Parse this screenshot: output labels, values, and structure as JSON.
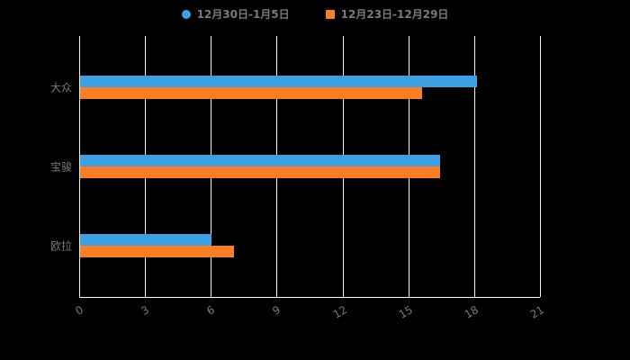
{
  "chart_data": {
    "type": "bar",
    "orientation": "horizontal",
    "title": "",
    "categories": [
      "大众",
      "宝骏",
      "欧拉"
    ],
    "series": [
      {
        "name": "12月30日-1月5日",
        "color": "#3BA0E4",
        "marker": "circle",
        "values": [
          18.1,
          16.4,
          6.0
        ]
      },
      {
        "name": "12月23日-12月29日",
        "color": "#FB7D24",
        "marker": "square",
        "values": [
          15.6,
          16.4,
          7.0
        ]
      }
    ],
    "xlim": [
      0,
      21
    ],
    "xticks": [
      "0",
      "3",
      "6",
      "9",
      "12",
      "15",
      "18",
      "21"
    ],
    "grid": true,
    "legend_position": "top",
    "colors": {
      "background": "#000000",
      "gridline": "#f5f5f5",
      "axis_line": "#ffffff",
      "axis_label": "#7a7a7a",
      "legend_text": "#7a7a7a"
    }
  }
}
